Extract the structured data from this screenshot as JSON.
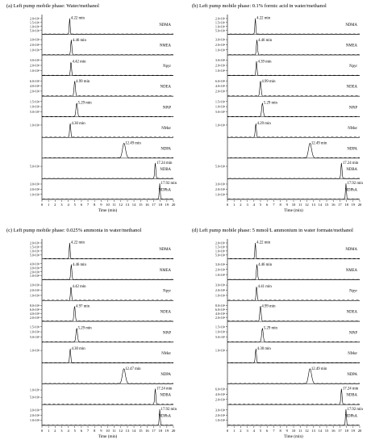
{
  "chart_data": [
    {
      "type": "line",
      "title": "(a) Left pump mobile phase: Water/methanol",
      "xlabel": "Time (min)",
      "xlim": [
        0,
        20
      ],
      "x_ticks": [
        "0",
        "1",
        "2",
        "3",
        "4",
        "5",
        "6",
        "7",
        "8",
        "9",
        "10",
        "11",
        "12",
        "13",
        "14",
        "15",
        "16",
        "17",
        "18",
        "19",
        "20"
      ],
      "series": [
        {
          "name": "NDMA",
          "rt": 4.22,
          "rt_label": "4.22 min",
          "y_ticks": [
            "2.0×10⁵",
            "1.5×10⁵",
            "1.0×10⁵",
            "5.0×10⁴"
          ]
        },
        {
          "name": "NMEA",
          "rt": 4.46,
          "rt_label": "4.46 min",
          "y_ticks": [
            "3.0×10⁴",
            "2.0×10⁴",
            "1.0×10⁴"
          ]
        },
        {
          "name": "Npyr",
          "rt": 4.42,
          "rt_label": "4.42 min",
          "y_ticks": [
            "3.0×10⁴",
            "2.0×10⁴",
            "1.0×10⁴"
          ]
        },
        {
          "name": "NDEA",
          "rt": 4.99,
          "rt_label": "4.99 min",
          "y_ticks": [
            "6.0×10⁴",
            "4.0×10⁴",
            "2.0×10⁴"
          ]
        },
        {
          "name": "NPiP",
          "rt": 5.29,
          "rt_label": "5.29 min",
          "y_ticks": [
            "1.5×10⁴",
            "1.0×10⁴",
            "5.0×10³"
          ]
        },
        {
          "name": "NMor",
          "rt": 4.3,
          "rt_label": "4.30 min",
          "y_ticks": [
            "1.0×10⁴"
          ]
        },
        {
          "name": "NDPA",
          "rt": 12.49,
          "rt_label": "12.49 min",
          "y_ticks": []
        },
        {
          "name": "NDBA",
          "rt": 17.24,
          "rt_label": "17.24 min",
          "y_ticks": [
            "5.0×10⁴"
          ]
        },
        {
          "name": "NDPhA",
          "rt": 17.92,
          "rt_label": "17.92 min",
          "y_ticks": [
            "3.0×10⁴",
            "2.0×10⁴",
            "1.0×10⁴"
          ]
        }
      ]
    },
    {
      "type": "line",
      "title": "(b) Left pump mobile phase: 0.1% formic acid in water/methanol",
      "xlabel": "Time (min)",
      "xlim": [
        0,
        20
      ],
      "x_ticks": [
        "0",
        "1",
        "2",
        "3",
        "4",
        "5",
        "6",
        "7",
        "8",
        "9",
        "10",
        "11",
        "12",
        "13",
        "14",
        "15",
        "16",
        "17",
        "18",
        "19",
        "20"
      ],
      "series": [
        {
          "name": "NDMA",
          "rt": 4.22,
          "rt_label": "4.22 min",
          "y_ticks": [
            "2.0×10⁵",
            "1.5×10⁵",
            "1.0×10⁵",
            "5.0×10⁴"
          ]
        },
        {
          "name": "NMEA",
          "rt": 4.46,
          "rt_label": "4.46 min",
          "y_ticks": [
            "3.0×10⁴",
            "2.0×10⁴",
            "1.0×10⁴"
          ]
        },
        {
          "name": "Npyr",
          "rt": 4.39,
          "rt_label": "4.39 min",
          "y_ticks": [
            "3.0×10⁴",
            "2.0×10⁴",
            "1.0×10⁴"
          ]
        },
        {
          "name": "NDEA",
          "rt": 4.99,
          "rt_label": "4.99 min",
          "y_ticks": [
            "6.0×10⁴",
            "4.0×10⁴",
            "2.0×10⁴"
          ]
        },
        {
          "name": "NPiP",
          "rt": 5.29,
          "rt_label": "5.29 min",
          "y_ticks": [
            "1.5×10⁴",
            "1.0×10⁴",
            "5.0×10³"
          ]
        },
        {
          "name": "NMor",
          "rt": 4.29,
          "rt_label": "4.29 min",
          "y_ticks": [
            "1.0×10⁴"
          ]
        },
        {
          "name": "NDPA",
          "rt": 12.49,
          "rt_label": "12.49 min",
          "y_ticks": []
        },
        {
          "name": "NDBA",
          "rt": 17.24,
          "rt_label": "17.24 min",
          "y_ticks": [
            "5.0×10⁴"
          ]
        },
        {
          "name": "NDPhA",
          "rt": 17.92,
          "rt_label": "17.92 min",
          "y_ticks": [
            "3.0×10⁴",
            "2.0×10⁴",
            "1.0×10⁴"
          ]
        }
      ]
    },
    {
      "type": "line",
      "title": "(c) Left pump mobile phase: 0.025% ammonia in water/methanol",
      "xlabel": "Time (min)",
      "xlim": [
        0,
        20
      ],
      "x_ticks": [
        "0",
        "1",
        "2",
        "3",
        "4",
        "5",
        "6",
        "7",
        "8",
        "9",
        "10",
        "11",
        "12",
        "13",
        "14",
        "15",
        "16",
        "17",
        "18",
        "19",
        "20"
      ],
      "series": [
        {
          "name": "NDMA",
          "rt": 4.22,
          "rt_label": "4.22 min",
          "y_ticks": [
            "2.0×10⁵",
            "1.5×10⁵",
            "1.0×10⁵",
            "5.0×10⁴"
          ]
        },
        {
          "name": "NMEA",
          "rt": 4.46,
          "rt_label": "4.46 min",
          "y_ticks": [
            "4.0×10⁴",
            "3.0×10⁴",
            "2.0×10⁴",
            "1.0×10⁴"
          ]
        },
        {
          "name": "Npyr",
          "rt": 4.42,
          "rt_label": "4.42 min",
          "y_ticks": [
            "3.0×10⁴",
            "2.0×10⁴",
            "1.0×10⁴"
          ]
        },
        {
          "name": "NDEA",
          "rt": 4.97,
          "rt_label": "4.97 min",
          "y_ticks": [
            "8.0×10⁴",
            "6.0×10⁴",
            "4.0×10⁴",
            "2.0×10⁴"
          ]
        },
        {
          "name": "NPiP",
          "rt": 5.29,
          "rt_label": "5.29 min",
          "y_ticks": [
            "1.5×10⁴",
            "1.0×10⁴",
            "5.0×10³"
          ]
        },
        {
          "name": "NMor",
          "rt": 4.3,
          "rt_label": "4.30 min",
          "y_ticks": [
            "1.0×10⁴"
          ]
        },
        {
          "name": "NDPA",
          "rt": 12.47,
          "rt_label": "12.47 min",
          "y_ticks": []
        },
        {
          "name": "NDBA",
          "rt": 17.24,
          "rt_label": "17.24 min",
          "y_ticks": [
            "1.0×10⁵",
            "5.0×10⁴"
          ]
        },
        {
          "name": "NDPhA",
          "rt": 17.92,
          "rt_label": "17.92 min",
          "y_ticks": [
            "3.0×10⁴",
            "2.0×10⁴",
            "1.0×10⁴"
          ]
        }
      ]
    },
    {
      "type": "line",
      "title": "(d) Left pump mobile phase: 5 mmol/L ammonium in water formate/methanol",
      "xlabel": "Time (min)",
      "xlim": [
        0,
        20
      ],
      "x_ticks": [
        "0",
        "1",
        "2",
        "3",
        "4",
        "5",
        "6",
        "7",
        "8",
        "9",
        "10",
        "11",
        "12",
        "13",
        "14",
        "15",
        "16",
        "17",
        "18",
        "19",
        "20"
      ],
      "series": [
        {
          "name": "NDMA",
          "rt": 4.22,
          "rt_label": "4.22 min",
          "y_ticks": [
            "2.0×10⁵",
            "1.5×10⁵",
            "1.0×10⁵",
            "5.0×10⁴"
          ]
        },
        {
          "name": "NMEA",
          "rt": 4.46,
          "rt_label": "4.46 min",
          "y_ticks": [
            "3.0×10⁴",
            "2.0×10⁴",
            "1.0×10⁴"
          ]
        },
        {
          "name": "Npyr",
          "rt": 4.41,
          "rt_label": "4.41 min",
          "y_ticks": [
            "3.0×10⁴",
            "2.0×10⁴",
            "1.0×10⁴"
          ]
        },
        {
          "name": "NDEA",
          "rt": 4.99,
          "rt_label": "4.99 min",
          "y_ticks": [
            "8.0×10⁴",
            "6.0×10⁴",
            "4.0×10⁴",
            "2.0×10⁴"
          ]
        },
        {
          "name": "NPiP",
          "rt": 5.29,
          "rt_label": "5.29 min",
          "y_ticks": [
            "1.5×10⁴",
            "1.0×10⁴",
            "5.0×10³"
          ]
        },
        {
          "name": "NMor",
          "rt": 4.3,
          "rt_label": "4.30 min",
          "y_ticks": [
            "1.0×10⁴"
          ]
        },
        {
          "name": "NDPA",
          "rt": 12.49,
          "rt_label": "12.49 min",
          "y_ticks": []
        },
        {
          "name": "NDBA",
          "rt": 17.24,
          "rt_label": "17.24 min",
          "y_ticks": [
            "6.0×10⁴",
            "4.0×10⁴",
            "2.0×10⁴"
          ]
        },
        {
          "name": "NDPhA",
          "rt": 17.92,
          "rt_label": "17.92 min",
          "y_ticks": [
            "3.0×10⁴",
            "2.0×10⁴",
            "1.0×10⁴"
          ]
        }
      ]
    }
  ]
}
